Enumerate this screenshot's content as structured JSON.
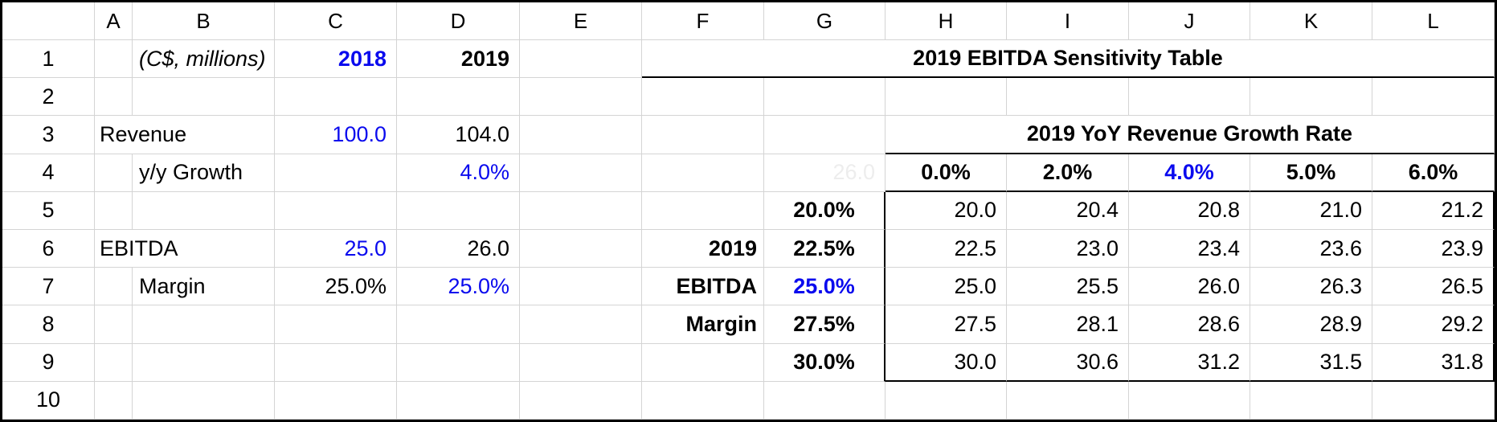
{
  "colors": {
    "accent_blue": "#0a0aee",
    "grid": "#d4d4d4",
    "ghost": "#ededed",
    "ink": "#000000"
  },
  "sheet": {
    "cols": [
      "A",
      "B",
      "C",
      "D",
      "E",
      "F",
      "G",
      "H",
      "I",
      "J",
      "K",
      "L"
    ],
    "rows": [
      "1",
      "2",
      "3",
      "4",
      "5",
      "6",
      "7",
      "8",
      "9",
      "10"
    ],
    "cells": {
      "b1": "(C$, millions)",
      "c1": "2018",
      "d1": "2019",
      "title": "2019 EBITDA Sensitivity Table",
      "a3": "Revenue",
      "c3": "100.0",
      "d3": "104.0",
      "growth_header": "2019 YoY Revenue Growth Rate",
      "b4": "y/y Growth",
      "d4": "4.0%",
      "g4_ghost": "26.0",
      "a6": "EBITDA",
      "c6": "25.0",
      "d6": "26.0",
      "b7": "Margin",
      "c7": "25.0%",
      "d7": "25.0%"
    },
    "sensitivity": {
      "col_headers": [
        "0.0%",
        "2.0%",
        "4.0%",
        "5.0%",
        "6.0%"
      ],
      "row_headers": [
        "20.0%",
        "22.5%",
        "25.0%",
        "27.5%",
        "30.0%"
      ],
      "axis_label_lines": [
        "2019",
        "EBITDA",
        "Margin"
      ],
      "values": [
        [
          "20.0",
          "20.4",
          "20.8",
          "21.0",
          "21.2"
        ],
        [
          "22.5",
          "23.0",
          "23.4",
          "23.6",
          "23.9"
        ],
        [
          "25.0",
          "25.5",
          "26.0",
          "26.3",
          "26.5"
        ],
        [
          "27.5",
          "28.1",
          "28.6",
          "28.9",
          "29.2"
        ],
        [
          "30.0",
          "30.6",
          "31.2",
          "31.5",
          "31.8"
        ]
      ]
    }
  }
}
